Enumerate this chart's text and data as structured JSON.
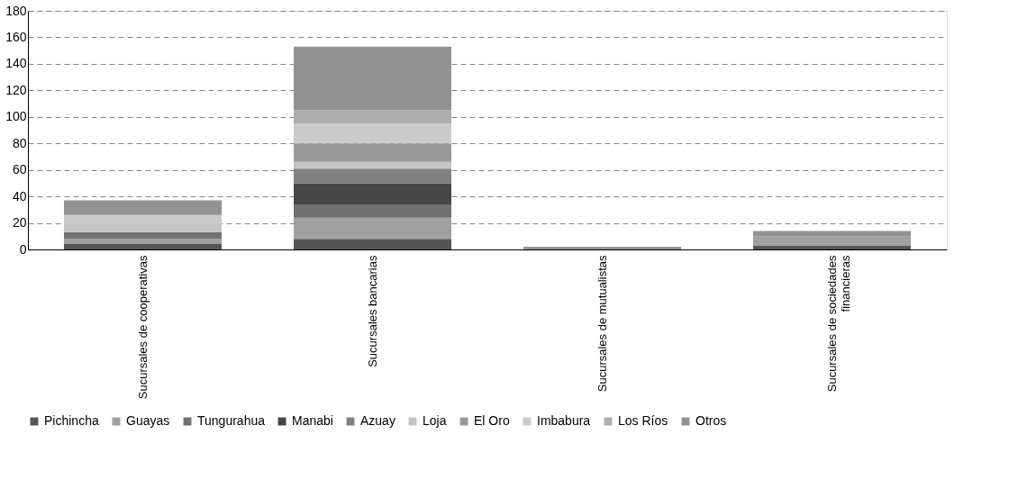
{
  "chart_data": {
    "type": "bar",
    "stacked": true,
    "categories": [
      "Sucursales de cooperativas",
      "Sucursales bancarias",
      "Sucursales de mutualistas",
      "Sucursales de sociedades financieras"
    ],
    "series": [
      {
        "name": "Pichincha",
        "color": "#555555",
        "values": [
          4,
          8,
          0,
          3
        ]
      },
      {
        "name": "Guayas",
        "color": "#a0a0a0",
        "values": [
          4,
          16,
          0,
          7
        ]
      },
      {
        "name": "Tungurahua",
        "color": "#707070",
        "values": [
          5,
          10,
          0,
          0
        ]
      },
      {
        "name": "Manabi",
        "color": "#464646",
        "values": [
          0,
          16,
          0,
          0
        ]
      },
      {
        "name": "Azuay",
        "color": "#808080",
        "values": [
          0,
          11,
          0,
          0
        ]
      },
      {
        "name": "Loja",
        "color": "#c4c4c4",
        "values": [
          6,
          5,
          0,
          0
        ]
      },
      {
        "name": "El Oro",
        "color": "#999999",
        "values": [
          0,
          14,
          0,
          0
        ]
      },
      {
        "name": "Imbabura",
        "color": "#cacaca",
        "values": [
          7,
          15,
          0,
          0
        ]
      },
      {
        "name": "Los Ríos",
        "color": "#adadad",
        "values": [
          0,
          10,
          0,
          0
        ]
      },
      {
        "name": "Otros",
        "color": "#929292",
        "values": [
          11,
          48,
          2,
          4
        ]
      }
    ],
    "ylim": [
      0,
      180
    ],
    "yticks": [
      0,
      20,
      40,
      60,
      80,
      100,
      120,
      140,
      160,
      180
    ],
    "grid": "y",
    "legend": "bottom"
  }
}
